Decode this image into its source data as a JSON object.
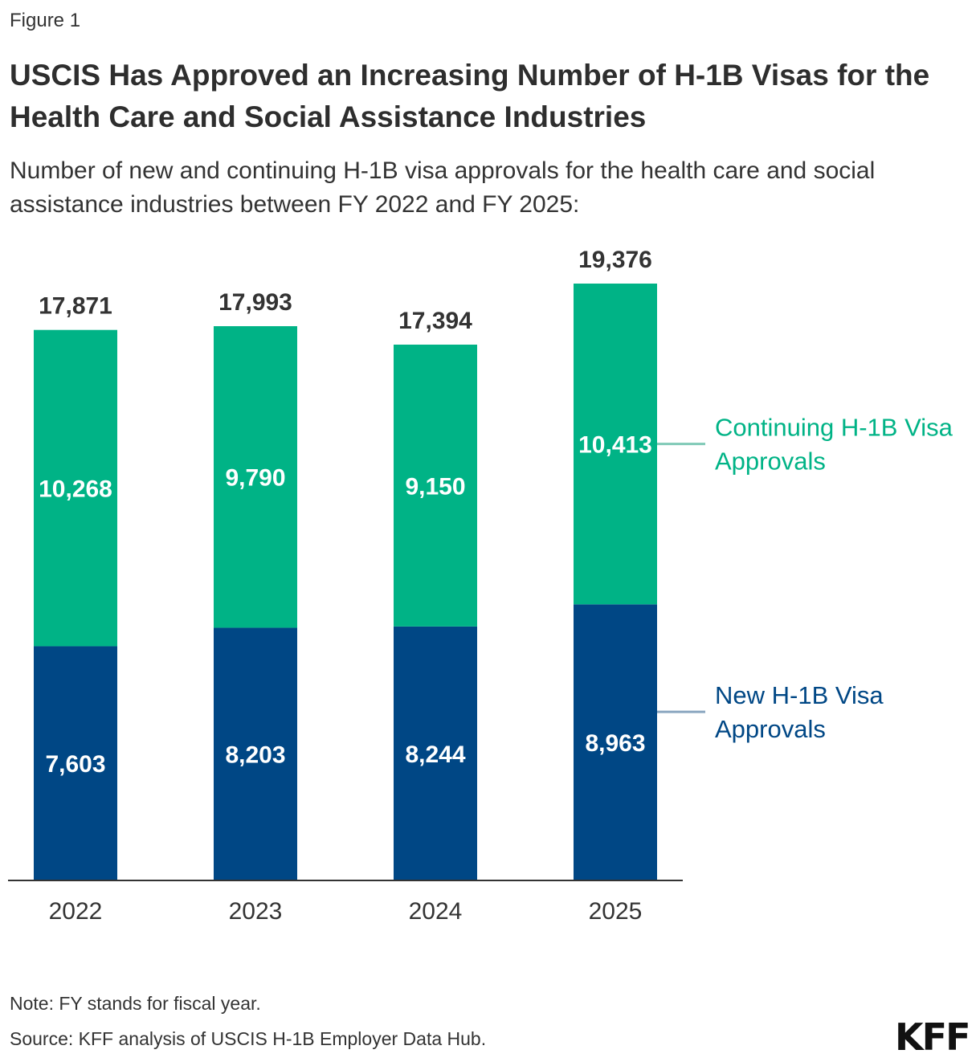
{
  "figure_label": "Figure 1",
  "title": "USCIS Has Approved an Increasing Number of H-1B Visas for the Health Care and Social Assistance Industries",
  "subtitle": "Number of new and continuing H-1B visa approvals for the health care and social assistance industries between FY 2022 and FY 2025:",
  "note": "Note: FY stands for fiscal year.",
  "source": "Source: KFF analysis of USCIS H-1B Employer Data Hub.",
  "logo": "KFF",
  "colors": {
    "continuing": "#00b386",
    "new": "#004785",
    "axis": "#333333",
    "connector_continuing": "#7fc9b6",
    "connector_new": "#8aa6c0"
  },
  "chart_data": {
    "type": "bar",
    "stacked": true,
    "categories": [
      "2022",
      "2023",
      "2024",
      "2025"
    ],
    "series": [
      {
        "name": "New H-1B Visa Approvals",
        "values": [
          7603,
          8203,
          8244,
          8963
        ]
      },
      {
        "name": "Continuing H-1B Visa Approvals",
        "values": [
          10268,
          9790,
          9150,
          10413
        ]
      }
    ],
    "totals": [
      "17,871",
      "17,993",
      "17,394",
      "19,376"
    ],
    "value_labels": {
      "new": [
        "7,603",
        "8,203",
        "8,244",
        "8,963"
      ],
      "continuing": [
        "10,268",
        "9,790",
        "9,150",
        "10,413"
      ]
    },
    "legend": {
      "continuing": [
        "Continuing H-1B Visa",
        "Approvals"
      ],
      "new": [
        "New H-1B Visa",
        "Approvals"
      ]
    },
    "legend_placement": "right-inline",
    "ylim": [
      0,
      19376
    ],
    "grid": false
  }
}
